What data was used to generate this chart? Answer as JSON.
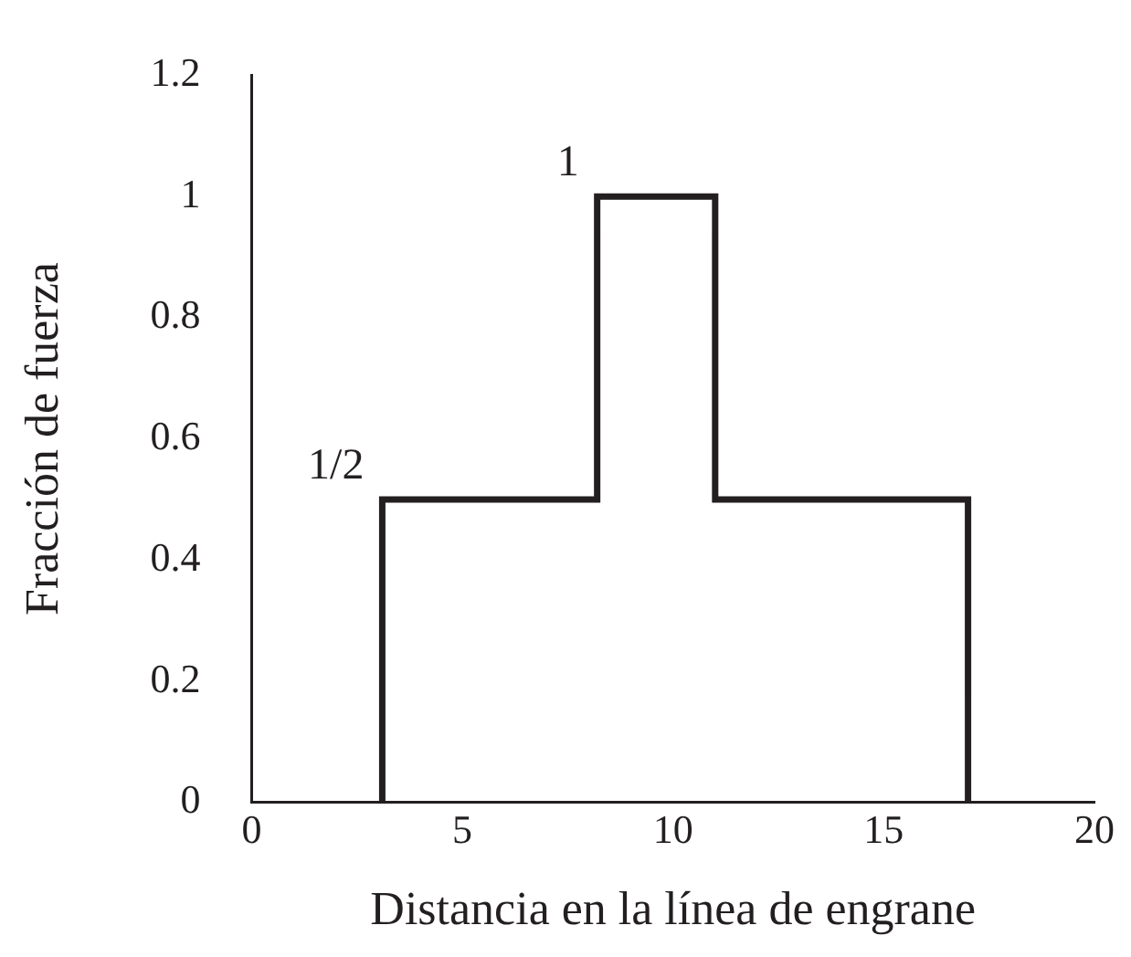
{
  "chart_data": {
    "type": "line",
    "xlabel": "Distancia en la línea de engrane",
    "ylabel": "Fracción de fuerza",
    "x": [
      3.1,
      3.1,
      8.2,
      8.2,
      11,
      11,
      17,
      17
    ],
    "series": [
      {
        "color": "#231f20",
        "values": [
          0,
          0.5,
          0.5,
          1,
          1,
          0.5,
          0.5,
          0
        ]
      }
    ],
    "xlim": [
      0,
      20
    ],
    "xticks": [
      0,
      5,
      10,
      15,
      20
    ],
    "ylim": [
      0,
      1.2
    ],
    "yticks": [
      0,
      0.2,
      0.4,
      0.6,
      0.8,
      1,
      1.2
    ],
    "grid": false,
    "legend": false,
    "marker": "none",
    "line_style": "solid",
    "annotations": [
      {
        "text": "1/2",
        "x": 3.1,
        "y": 0.5
      },
      {
        "text": "1",
        "x": 8.2,
        "y": 1
      }
    ]
  }
}
